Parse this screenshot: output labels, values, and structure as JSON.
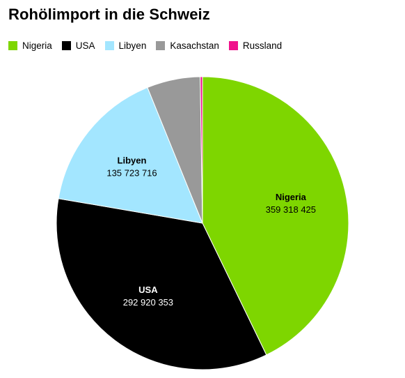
{
  "chart_data": {
    "type": "pie",
    "title": "Rohölimport in die Schweiz",
    "legend_position": "top-left",
    "slices": [
      {
        "label": "Nigeria",
        "value": 359318425,
        "value_label": "359 318 425",
        "color": "#7ed600",
        "label_color": "#000000",
        "show_label": true
      },
      {
        "label": "USA",
        "value": 292920353,
        "value_label": "292 920 353",
        "color": "#000000",
        "label_color": "#ffffff",
        "show_label": true
      },
      {
        "label": "Libyen",
        "value": 135723716,
        "value_label": "135 723 716",
        "color": "#a3e6ff",
        "label_color": "#000000",
        "show_label": true
      },
      {
        "label": "Kasachstan",
        "value": 49500000,
        "value_label": "",
        "color": "#999999",
        "label_color": "#000000",
        "show_label": false
      },
      {
        "label": "Russland",
        "value": 2100000,
        "value_label": "",
        "color": "#f0128c",
        "label_color": "#000000",
        "show_label": false
      }
    ]
  }
}
